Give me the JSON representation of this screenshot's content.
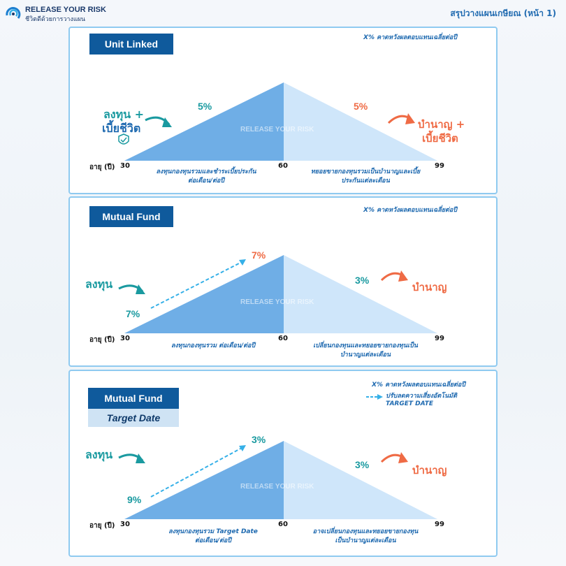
{
  "header": {
    "brand": "RELEASE YOUR RISK",
    "tagline": "ชีวิตดีด้วยการวางแผน",
    "page_title": "สรุปวางแผนเกษียณ (หน้า 1)"
  },
  "watermark": "RELEASE YOUR RISK",
  "colors": {
    "accent_blue": "#0f5a9c",
    "teal": "#1a9aa0",
    "orange": "#ef6b45",
    "tri_dark": "#6faee6",
    "tri_light": "#cfe6fa"
  },
  "axis": {
    "age_label": "อายุ (ปี)",
    "start": "30",
    "mid": "60",
    "end": "99"
  },
  "panels": [
    {
      "title": "Unit Linked",
      "note": "X% คาดหวังผลตอบแทนเฉลี่ยต่อปี",
      "left_pct": "5%",
      "right_pct": "5%",
      "left_label_1": "ลงทุน +",
      "left_label_2": "เบี้ยชีวิต",
      "right_label_1": "บำนาญ +",
      "right_label_2": "เบี้ยชีวิต",
      "left_caption_1": "ลงทุนกองทุนรวมและชำระเบี้ยประกัน",
      "left_caption_2": "ต่อเดือน/ต่อปี",
      "right_caption_1": "ทยอยขายกองทุนรวมเป็นบำนาญและเบี้ย",
      "right_caption_2": "ประกันแต่ละเดือน"
    },
    {
      "title": "Mutual Fund",
      "note": "X% คาดหวังผลตอบแทนเฉลี่ยต่อปี",
      "start_pct": "7%",
      "peak_pct": "7%",
      "right_pct": "3%",
      "left_label": "ลงทุน",
      "right_label": "บำนาญ",
      "left_caption": "ลงทุนกองทุนรวม ต่อเดือน/ต่อปี",
      "right_caption_1": "เปลี่ยนกองทุนและทยอยขายกองทุนเป็น",
      "right_caption_2": "บำนาญแต่ละเดือน"
    },
    {
      "title": "Mutual Fund",
      "subtitle": "Target Date",
      "note": "X% คาดหวังผลตอบแทนเฉลี่ยต่อปี",
      "legend_1": "ปรับลดความเสี่ยงอัตโนมัติ",
      "legend_2": "TARGET DATE",
      "start_pct": "9%",
      "peak_pct": "3%",
      "right_pct": "3%",
      "left_label": "ลงทุน",
      "right_label": "บำนาญ",
      "left_caption_1": "ลงทุนกองทุนรวม Target Date",
      "left_caption_2": "ต่อเดือน/ต่อปี",
      "right_caption_1": "อาจเปลี่ยนกองทุนและทยอยขายกองทุน",
      "right_caption_2": "เป็นบำนาญแต่ละเดือน"
    }
  ]
}
